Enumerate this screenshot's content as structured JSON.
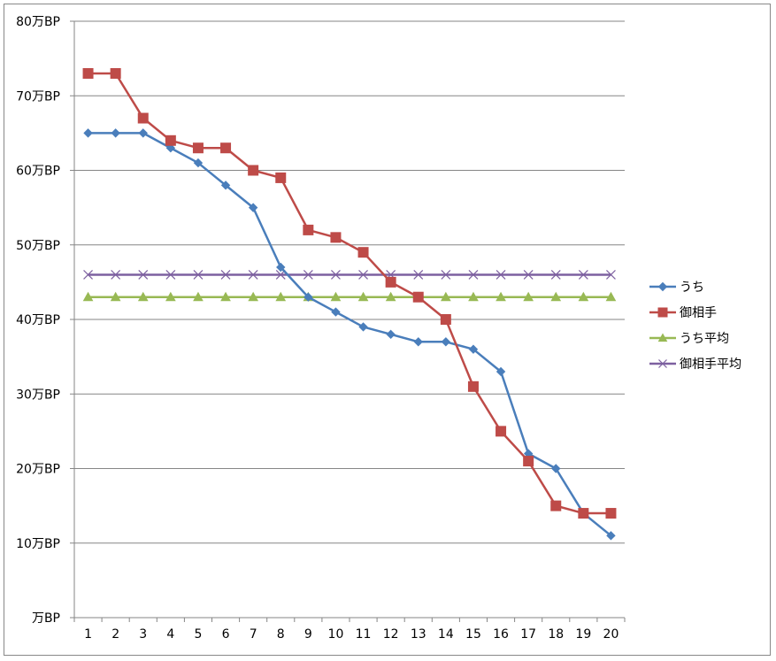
{
  "chart_data": {
    "type": "line",
    "title": "",
    "xlabel": "",
    "ylabel": "",
    "x": [
      1,
      2,
      3,
      4,
      5,
      6,
      7,
      8,
      9,
      10,
      11,
      12,
      13,
      14,
      15,
      16,
      17,
      18,
      19,
      20
    ],
    "x_tick_labels": [
      "1",
      "2",
      "3",
      "4",
      "5",
      "6",
      "7",
      "8",
      "9",
      "10",
      "11",
      "12",
      "13",
      "14",
      "15",
      "16",
      "17",
      "18",
      "19",
      "20"
    ],
    "ylim": [
      0,
      80
    ],
    "y_tick_values": [
      0,
      10,
      20,
      30,
      40,
      50,
      60,
      70,
      80
    ],
    "y_tick_labels": [
      "万BP",
      "10万BP",
      "20万BP",
      "30万BP",
      "40万BP",
      "50万BP",
      "60万BP",
      "70万BP",
      "80万BP"
    ],
    "grid": "horizontal",
    "legend_position": "right",
    "series": [
      {
        "name": "うち",
        "marker": "diamond",
        "color": "#4A7EBB",
        "values": [
          65,
          65,
          65,
          63,
          61,
          58,
          55,
          47,
          43,
          41,
          39,
          38,
          37,
          37,
          36,
          33,
          22,
          20,
          14,
          11
        ]
      },
      {
        "name": "御相手",
        "marker": "square",
        "color": "#BE4B48",
        "values": [
          73,
          73,
          67,
          64,
          63,
          63,
          60,
          59,
          52,
          51,
          49,
          45,
          43,
          40,
          31,
          25,
          21,
          15,
          14,
          14
        ]
      },
      {
        "name": "うち平均",
        "marker": "triangle",
        "color": "#98B954",
        "values": [
          43,
          43,
          43,
          43,
          43,
          43,
          43,
          43,
          43,
          43,
          43,
          43,
          43,
          43,
          43,
          43,
          43,
          43,
          43,
          43
        ]
      },
      {
        "name": "御相手平均",
        "marker": "x",
        "color": "#7D60A0",
        "values": [
          46,
          46,
          46,
          46,
          46,
          46,
          46,
          46,
          46,
          46,
          46,
          46,
          46,
          46,
          46,
          46,
          46,
          46,
          46,
          46
        ]
      }
    ]
  }
}
